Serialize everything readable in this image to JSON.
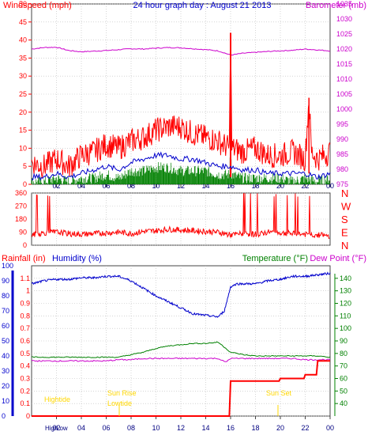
{
  "title": "24 hour graph day : August 21 2013",
  "colors": {
    "wind": "#ff0000",
    "barometer": "#cc00cc",
    "direction": "#ff0000",
    "rain": "#ff0000",
    "humidity": "#0000cc",
    "temperature": "#008000",
    "dewpoint": "#cc00cc",
    "annotation": "#ffd700",
    "axis_blue": "#0000cc",
    "axis_green": "#008000",
    "grid": "#bbbbbb",
    "frame": "#444444"
  },
  "hour_ticks": [
    "02",
    "04",
    "06",
    "08",
    "10",
    "12",
    "14",
    "16",
    "18",
    "20",
    "22",
    "00"
  ],
  "chart_data": [
    {
      "type": "line",
      "name": "wind-barometer",
      "left_axis": {
        "label": "Windspeed (mph)",
        "ylim": [
          0,
          50
        ],
        "ticks": [
          "0",
          "5",
          "10",
          "15",
          "20",
          "25",
          "30",
          "35",
          "40",
          "45",
          "50"
        ]
      },
      "right_axis": {
        "label": "Barometer (mb)",
        "ylim": [
          975,
          1035
        ],
        "ticks": [
          "975",
          "980",
          "985",
          "990",
          "995",
          "1000",
          "1005",
          "1010",
          "1015",
          "1020",
          "1025",
          "1030",
          "1035"
        ]
      },
      "x_range_hours": [
        0,
        24
      ],
      "series": [
        {
          "key": "barometer",
          "axis": "right",
          "x": [
            0,
            1,
            2,
            3,
            4,
            5,
            6,
            7,
            8,
            9,
            10,
            11,
            12,
            13,
            14,
            15,
            16,
            17,
            18,
            19,
            20,
            21,
            22,
            23,
            24
          ],
          "values": [
            1020,
            1020.5,
            1020.6,
            1019.5,
            1019.1,
            1019.3,
            1019.5,
            1019.8,
            1020.1,
            1020,
            1020.3,
            1020.5,
            1020.4,
            1020.1,
            1019.8,
            1019.4,
            1018,
            1018.6,
            1018.9,
            1019.2,
            1019.4,
            1019.6,
            1020,
            1019.7,
            1019.4
          ]
        },
        {
          "key": "gust",
          "axis": "left",
          "x": [
            0,
            1,
            2,
            3,
            4,
            5,
            6,
            7,
            8,
            9,
            10,
            11,
            12,
            13,
            14,
            15,
            15.9,
            16,
            16.1,
            17,
            18,
            19,
            20,
            21,
            22,
            22.3,
            22.5,
            23,
            24
          ],
          "values": [
            6,
            5,
            7,
            5,
            8,
            9,
            11,
            10,
            12,
            13,
            15,
            16,
            16,
            14,
            13,
            12,
            10,
            42,
            10,
            9,
            10,
            8,
            8,
            9,
            7,
            24,
            9,
            7,
            9
          ]
        },
        {
          "key": "average",
          "axis": "left",
          "x": [
            0,
            1,
            2,
            3,
            4,
            5,
            6,
            7,
            8,
            9,
            10,
            11,
            12,
            13,
            14,
            15,
            16,
            17,
            18,
            19,
            20,
            21,
            22,
            23,
            24
          ],
          "values": [
            2,
            2,
            3,
            2,
            3,
            4,
            5,
            4,
            6,
            7,
            8,
            8,
            7,
            7,
            6,
            5,
            5,
            4,
            4,
            3,
            3,
            3,
            3,
            2,
            3
          ]
        },
        {
          "key": "speed",
          "axis": "left",
          "x": [
            0,
            1,
            2,
            3,
            4,
            5,
            6,
            7,
            8,
            9,
            10,
            11,
            12,
            13,
            14,
            15,
            15.9,
            16,
            16.1,
            17,
            18,
            19,
            20,
            21,
            22,
            23,
            24
          ],
          "values": [
            0,
            0,
            1,
            0,
            1,
            1,
            2,
            1,
            3,
            3,
            4,
            4,
            3,
            3,
            3,
            2,
            2,
            13,
            2,
            1,
            1,
            1,
            1,
            0,
            1,
            0,
            1
          ]
        }
      ]
    },
    {
      "type": "line",
      "name": "wind-direction",
      "right_labels": [
        "N",
        "W",
        "S",
        "E",
        "N"
      ],
      "left_ticks": [
        "0",
        "90",
        "180",
        "270",
        "360"
      ],
      "ylim": [
        0,
        360
      ],
      "x_range_hours": [
        0,
        24
      ],
      "series": [
        {
          "key": "direction",
          "x": [
            0,
            1,
            2,
            3,
            4,
            5,
            6,
            7,
            8,
            9,
            10,
            11,
            12,
            13,
            14,
            15,
            16,
            17,
            18,
            19,
            20,
            21,
            22,
            23,
            24
          ],
          "values": [
            70,
            85,
            90,
            80,
            75,
            80,
            85,
            90,
            80,
            95,
            100,
            110,
            105,
            100,
            95,
            90,
            70,
            80,
            75,
            90,
            85,
            80,
            75,
            70,
            65
          ]
        }
      ]
    },
    {
      "type": "line",
      "name": "rain-humidity-temperature",
      "left_axis_rain": {
        "label": "Rainfall (in)",
        "ylim": [
          0,
          1.2
        ],
        "ticks": [
          "0",
          "0.1",
          "0.2",
          "0.3",
          "0.4",
          "0.5",
          "0.6",
          "0.7",
          "0.8",
          "0.9",
          "1",
          "1.1"
        ]
      },
      "left_axis_humidity": {
        "label": "Humidity (%)",
        "ylim": [
          0,
          100
        ],
        "ticks": [
          "0",
          "10",
          "20",
          "30",
          "40",
          "50",
          "60",
          "70",
          "80",
          "90",
          "100"
        ]
      },
      "right_axis": {
        "label": "Temperature (°F)",
        "label2": "Dew Point (°F)",
        "ylim": [
          30,
          150
        ],
        "ticks": [
          "40",
          "50",
          "60",
          "70",
          "80",
          "90",
          "100",
          "110",
          "120",
          "130",
          "140"
        ]
      },
      "x_range_hours": [
        0,
        24
      ],
      "series": [
        {
          "key": "humidity",
          "x": [
            0,
            1,
            2,
            3,
            4,
            5,
            6,
            7,
            8,
            9,
            10,
            11,
            12,
            13,
            14,
            15,
            15.5,
            16,
            16.5,
            17,
            18,
            19,
            20,
            21,
            22,
            23,
            24
          ],
          "values": [
            88,
            90,
            91,
            91,
            92,
            92,
            93,
            93,
            90,
            85,
            80,
            76,
            72,
            68,
            67,
            66,
            70,
            86,
            88,
            88,
            88,
            90,
            91,
            93,
            93,
            94,
            95
          ]
        },
        {
          "key": "temperature",
          "x": [
            0,
            1,
            2,
            3,
            4,
            5,
            6,
            7,
            8,
            9,
            10,
            11,
            12,
            13,
            14,
            15,
            16,
            17,
            18,
            19,
            20,
            21,
            22,
            23,
            24
          ],
          "values": [
            77,
            77,
            77,
            77,
            77,
            77,
            77,
            77,
            79,
            81,
            84,
            86,
            87,
            88,
            88,
            89,
            81,
            79,
            78,
            78,
            78,
            78,
            78,
            78,
            77
          ]
        },
        {
          "key": "dewpoint",
          "x": [
            0,
            1,
            2,
            3,
            4,
            5,
            6,
            7,
            8,
            9,
            10,
            11,
            12,
            13,
            14,
            15,
            15.6,
            16,
            16.5,
            17,
            18,
            19,
            20,
            21,
            22,
            23,
            24
          ],
          "values": [
            74,
            74,
            74,
            74,
            74,
            74,
            74,
            75,
            75,
            76,
            76,
            76,
            76,
            76,
            76,
            76,
            73,
            76,
            76,
            76,
            76,
            76,
            76,
            76,
            75,
            75,
            75
          ]
        },
        {
          "key": "rainfall",
          "x": [
            0,
            15.9,
            16,
            19.9,
            20,
            21.9,
            22,
            22.9,
            23,
            24
          ],
          "values": [
            0,
            0,
            0.28,
            0.28,
            0.3,
            0.3,
            0.33,
            0.33,
            0.44,
            0.44
          ]
        }
      ],
      "annotations": [
        "Hightide",
        "Sun Rise",
        "Lowtide",
        "Sun Set"
      ],
      "bottom_labels": [
        "High",
        "Low"
      ]
    }
  ]
}
